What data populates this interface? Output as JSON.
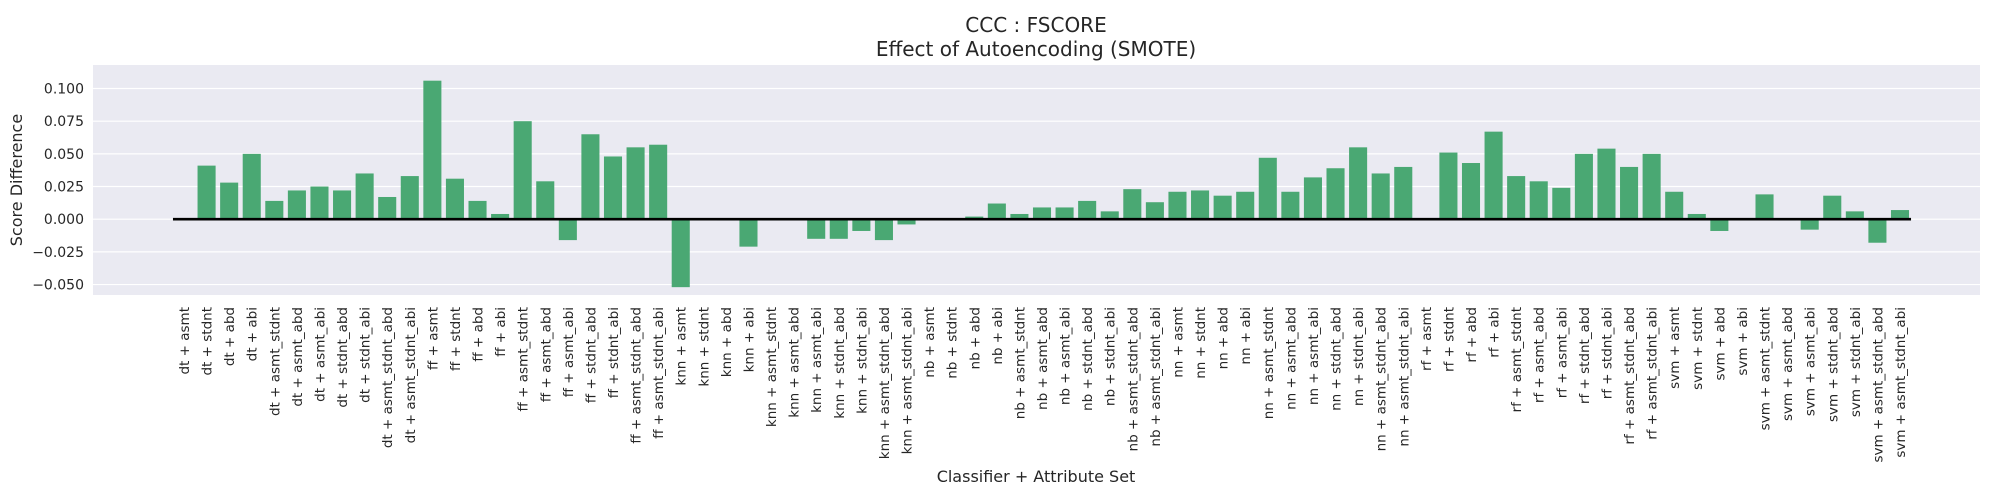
{
  "colors": {
    "plot_background": "#eaeaf2",
    "gridline": "#ffffff",
    "bar": "#4aa873",
    "zero_line": "#000000",
    "text": "#262626"
  },
  "chart_data": {
    "type": "bar",
    "title": "CCC : FSCORE",
    "subtitle": "Effect of Autoencoding (SMOTE)",
    "xlabel": "Classifier + Attribute Set",
    "ylabel": "Score Difference",
    "ylim": [
      -0.058,
      0.118
    ],
    "yticks": [
      -0.05,
      -0.025,
      0.0,
      0.025,
      0.05,
      0.075,
      0.1
    ],
    "ytick_labels": [
      "−0.050",
      "−0.025",
      "0.000",
      "0.025",
      "0.050",
      "0.075",
      "0.100"
    ],
    "grid": true,
    "reference_line": 0,
    "categories": [
      "dt + asmt",
      "dt + stdnt",
      "dt + abd",
      "dt + abi",
      "dt + asmt_stdnt",
      "dt + asmt_abd",
      "dt + asmt_abi",
      "dt + stdnt_abd",
      "dt + stdnt_abi",
      "dt + asmt_stdnt_abd",
      "dt + asmt_stdnt_abi",
      "ff + asmt",
      "ff + stdnt",
      "ff + abd",
      "ff + abi",
      "ff + asmt_stdnt",
      "ff + asmt_abd",
      "ff + asmt_abi",
      "ff + stdnt_abd",
      "ff + stdnt_abi",
      "ff + asmt_stdnt_abd",
      "ff + asmt_stdnt_abi",
      "knn + asmt",
      "knn + stdnt",
      "knn + abd",
      "knn + abi",
      "knn + asmt_stdnt",
      "knn + asmt_abd",
      "knn + asmt_abi",
      "knn + stdnt_abd",
      "knn + stdnt_abi",
      "knn + asmt_stdnt_abd",
      "knn + asmt_stdnt_abi",
      "nb + asmt",
      "nb + stdnt",
      "nb + abd",
      "nb + abi",
      "nb + asmt_stdnt",
      "nb + asmt_abd",
      "nb + asmt_abi",
      "nb + stdnt_abd",
      "nb + stdnt_abi",
      "nb + asmt_stdnt_abd",
      "nb + asmt_stdnt_abi",
      "nn + asmt",
      "nn + stdnt",
      "nn + abd",
      "nn + abi",
      "nn + asmt_stdnt",
      "nn + asmt_abd",
      "nn + asmt_abi",
      "nn + stdnt_abd",
      "nn + stdnt_abi",
      "nn + asmt_stdnt_abd",
      "nn + asmt_stdnt_abi",
      "rf + asmt",
      "rf + stdnt",
      "rf + abd",
      "rf + abi",
      "rf + asmt_stdnt",
      "rf + asmt_abd",
      "rf + asmt_abi",
      "rf + stdnt_abd",
      "rf + stdnt_abi",
      "rf + asmt_stdnt_abd",
      "rf + asmt_stdnt_abi",
      "svm + asmt",
      "svm + stdnt",
      "svm + abd",
      "svm + abi",
      "svm + asmt_stdnt",
      "svm + asmt_abd",
      "svm + asmt_abi",
      "svm + stdnt_abd",
      "svm + stdnt_abi",
      "svm + asmt_stdnt_abd",
      "svm + asmt_stdnt_abi"
    ],
    "values": [
      0.0,
      0.041,
      0.028,
      0.05,
      0.014,
      0.022,
      0.025,
      0.022,
      0.035,
      0.017,
      0.033,
      0.106,
      0.031,
      0.014,
      0.004,
      0.075,
      0.029,
      -0.016,
      0.065,
      0.048,
      0.055,
      0.057,
      -0.052,
      0.0,
      -0.001,
      -0.021,
      -0.001,
      0.0,
      -0.015,
      -0.015,
      -0.009,
      -0.016,
      -0.004,
      0.0,
      -0.001,
      0.002,
      0.012,
      0.004,
      0.009,
      0.009,
      0.014,
      0.006,
      0.023,
      0.013,
      0.021,
      0.022,
      0.018,
      0.021,
      0.047,
      0.021,
      0.032,
      0.039,
      0.055,
      0.035,
      0.04,
      0.0,
      0.051,
      0.043,
      0.067,
      0.033,
      0.029,
      0.024,
      0.05,
      0.054,
      0.04,
      0.05,
      0.021,
      0.004,
      -0.009,
      0.0,
      0.019,
      -0.001,
      -0.008,
      0.018,
      0.006,
      -0.018,
      0.007
    ]
  }
}
